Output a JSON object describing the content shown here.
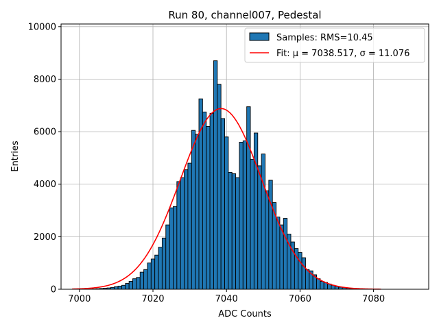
{
  "chart_data": {
    "type": "bar",
    "title": "Run 80, channel007, Pedestal",
    "xlabel": "ADC Counts",
    "ylabel": "Entries",
    "xlim": [
      6995,
      7095
    ],
    "ylim": [
      0,
      10100
    ],
    "xticks": [
      7000,
      7020,
      7040,
      7060,
      7080
    ],
    "yticks": [
      0,
      2000,
      4000,
      6000,
      8000,
      10000
    ],
    "grid": true,
    "legend_position": "top-right",
    "bin_width": 1,
    "histogram": {
      "name": "Samples: RMS=10.45",
      "color": "#1f77b4",
      "edge_color": "#000000",
      "x": [
        7002,
        7003,
        7004,
        7005,
        7006,
        7007,
        7008,
        7009,
        7010,
        7011,
        7012,
        7013,
        7014,
        7015,
        7016,
        7017,
        7018,
        7019,
        7020,
        7021,
        7022,
        7023,
        7024,
        7025,
        7026,
        7027,
        7028,
        7029,
        7030,
        7031,
        7032,
        7033,
        7034,
        7035,
        7036,
        7037,
        7038,
        7039,
        7040,
        7041,
        7042,
        7043,
        7044,
        7045,
        7046,
        7047,
        7048,
        7049,
        7050,
        7051,
        7052,
        7053,
        7054,
        7055,
        7056,
        7057,
        7058,
        7059,
        7060,
        7061,
        7062,
        7063,
        7064,
        7065,
        7066,
        7067,
        7068,
        7069,
        7070,
        7071,
        7072,
        7073,
        7074,
        7075,
        7076
      ],
      "values": [
        5,
        5,
        10,
        20,
        30,
        40,
        50,
        70,
        100,
        120,
        150,
        220,
        300,
        400,
        450,
        650,
        750,
        1000,
        1150,
        1300,
        1600,
        1950,
        2450,
        3100,
        3150,
        4100,
        4250,
        4550,
        4800,
        6050,
        5900,
        7250,
        6750,
        6200,
        6700,
        8700,
        7800,
        6500,
        5800,
        4450,
        4400,
        4250,
        5600,
        5650,
        6950,
        4950,
        5950,
        4700,
        5150,
        3750,
        4150,
        3300,
        2750,
        2450,
        2700,
        2100,
        1800,
        1550,
        1400,
        1200,
        750,
        700,
        550,
        400,
        300,
        260,
        200,
        150,
        110,
        80,
        60,
        40,
        20,
        10,
        5
      ]
    },
    "series": [
      {
        "name": "Fit: μ = 7038.517, σ = 11.076",
        "type": "line",
        "color": "#ff0000",
        "mu": 7038.517,
        "sigma": 11.076,
        "amplitude": 6880,
        "x_range": [
          6998,
          7082
        ]
      }
    ]
  }
}
